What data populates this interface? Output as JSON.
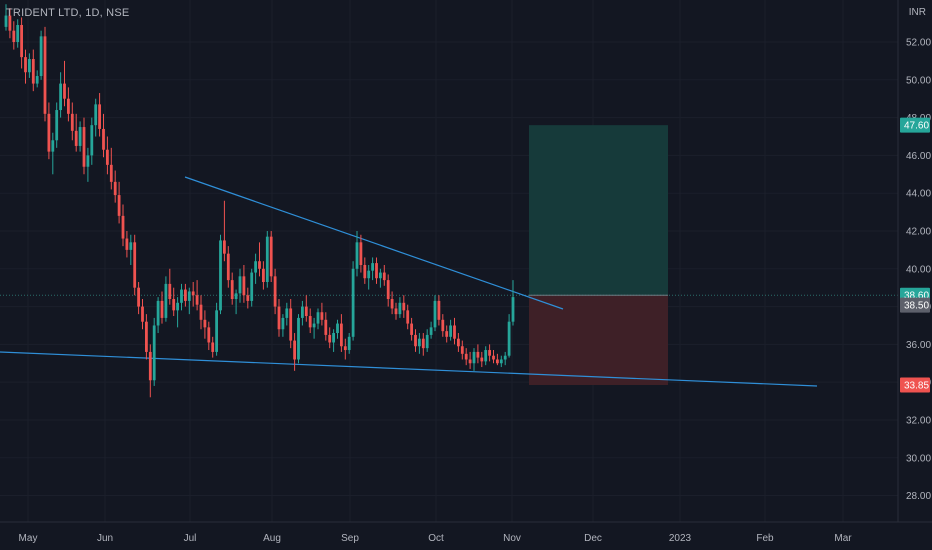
{
  "header": {
    "title": "TRIDENT LTD, 1D, NSE",
    "currency": "INR"
  },
  "colors": {
    "background": "#131722",
    "grid": "#1b1f2b",
    "up": "#26a69a",
    "down": "#ef5350",
    "trendline": "#2f8fd8",
    "target_zone": "#163a3a",
    "stop_zone": "#3e2027",
    "axis_text": "#b2b5be"
  },
  "chart_data": {
    "type": "candlestick",
    "y_axis": {
      "ticks": [
        28,
        30,
        32,
        34,
        36,
        38,
        40,
        42,
        44,
        46,
        48,
        50,
        52
      ],
      "ylim": [
        26.6,
        53.8
      ]
    },
    "x_axis": {
      "labels": [
        "May",
        "Jun",
        "Jul",
        "Aug",
        "Sep",
        "Oct",
        "Nov",
        "Dec",
        "2023",
        "Feb",
        "Mar"
      ]
    },
    "price_badges": [
      {
        "value": "47.60",
        "type": "target"
      },
      {
        "value": "38.60",
        "type": "entry"
      },
      {
        "value": "38.50",
        "type": "last"
      },
      {
        "value": "33.85",
        "type": "stop"
      }
    ],
    "position": {
      "entry": 38.6,
      "target": 47.6,
      "stop": 33.85
    },
    "candles": [
      [
        52.8,
        54.0,
        52.6,
        53.4
      ],
      [
        53.4,
        53.8,
        52.2,
        52.6
      ],
      [
        52.6,
        53.1,
        51.6,
        52.0
      ],
      [
        52.0,
        53.2,
        51.7,
        52.9
      ],
      [
        52.9,
        53.3,
        50.6,
        51.2
      ],
      [
        51.2,
        51.6,
        49.8,
        50.4
      ],
      [
        50.4,
        51.4,
        50.1,
        51.1
      ],
      [
        51.1,
        51.6,
        49.4,
        49.8
      ],
      [
        49.8,
        50.5,
        49.6,
        50.2
      ],
      [
        50.2,
        52.6,
        50.0,
        52.3
      ],
      [
        52.3,
        52.8,
        47.8,
        48.2
      ],
      [
        48.2,
        48.8,
        45.8,
        46.2
      ],
      [
        46.2,
        47.2,
        45.0,
        46.8
      ],
      [
        46.8,
        48.8,
        46.4,
        48.4
      ],
      [
        48.4,
        50.4,
        48.0,
        49.8
      ],
      [
        49.8,
        51.0,
        48.6,
        49.0
      ],
      [
        49.0,
        49.6,
        47.8,
        48.2
      ],
      [
        48.2,
        48.8,
        46.8,
        47.3
      ],
      [
        47.3,
        48.2,
        46.2,
        46.5
      ],
      [
        46.5,
        47.8,
        46.2,
        47.5
      ],
      [
        47.5,
        48.0,
        45.0,
        45.4
      ],
      [
        45.4,
        46.4,
        44.6,
        46.0
      ],
      [
        46.0,
        48.0,
        45.5,
        47.6
      ],
      [
        47.6,
        49.0,
        47.0,
        48.7
      ],
      [
        48.7,
        49.3,
        47.0,
        47.4
      ],
      [
        47.4,
        48.2,
        45.9,
        46.3
      ],
      [
        46.3,
        47.0,
        45.0,
        45.5
      ],
      [
        45.5,
        46.4,
        44.2,
        44.6
      ],
      [
        44.6,
        45.2,
        43.5,
        43.9
      ],
      [
        43.9,
        44.6,
        42.4,
        42.8
      ],
      [
        42.8,
        43.4,
        41.2,
        41.6
      ],
      [
        41.6,
        42.0,
        40.6,
        41.0
      ],
      [
        41.0,
        41.8,
        40.2,
        41.4
      ],
      [
        41.4,
        41.8,
        38.6,
        39.0
      ],
      [
        39.0,
        39.3,
        37.6,
        38.0
      ],
      [
        38.0,
        38.4,
        36.8,
        37.2
      ],
      [
        37.2,
        37.6,
        35.2,
        35.6
      ],
      [
        35.6,
        36.0,
        33.2,
        34.1
      ],
      [
        34.1,
        37.4,
        33.8,
        37.0
      ],
      [
        37.0,
        38.5,
        36.6,
        38.3
      ],
      [
        38.3,
        38.8,
        37.1,
        37.4
      ],
      [
        37.4,
        39.6,
        37.2,
        39.2
      ],
      [
        39.2,
        40.0,
        38.1,
        38.4
      ],
      [
        38.4,
        39.0,
        37.5,
        37.8
      ],
      [
        37.8,
        38.5,
        36.9,
        38.2
      ],
      [
        38.2,
        39.2,
        37.8,
        38.9
      ],
      [
        38.9,
        39.2,
        38.0,
        38.3
      ],
      [
        38.3,
        39.0,
        37.6,
        38.8
      ],
      [
        38.8,
        39.3,
        38.0,
        38.6
      ],
      [
        38.6,
        39.4,
        37.8,
        38.1
      ],
      [
        38.1,
        38.6,
        36.8,
        37.3
      ],
      [
        37.3,
        37.8,
        36.3,
        36.9
      ],
      [
        36.9,
        37.2,
        35.7,
        36.1
      ],
      [
        36.1,
        36.4,
        35.3,
        35.6
      ],
      [
        35.6,
        38.2,
        35.4,
        37.8
      ],
      [
        37.8,
        41.8,
        37.6,
        41.5
      ],
      [
        41.5,
        43.6,
        40.4,
        40.8
      ],
      [
        40.8,
        41.2,
        39.0,
        39.4
      ],
      [
        39.4,
        39.8,
        38.1,
        38.4
      ],
      [
        38.4,
        38.9,
        37.6,
        38.7
      ],
      [
        38.7,
        40.0,
        38.2,
        39.6
      ],
      [
        39.6,
        40.2,
        38.2,
        38.6
      ],
      [
        38.6,
        39.0,
        37.9,
        38.3
      ],
      [
        38.3,
        40.0,
        38.0,
        39.8
      ],
      [
        39.8,
        40.8,
        39.2,
        40.4
      ],
      [
        40.4,
        41.4,
        39.6,
        40.0
      ],
      [
        40.0,
        40.4,
        38.9,
        39.3
      ],
      [
        39.3,
        42.0,
        39.0,
        41.7
      ],
      [
        41.7,
        42.0,
        39.3,
        39.6
      ],
      [
        39.6,
        40.0,
        37.6,
        38.0
      ],
      [
        38.0,
        38.4,
        36.4,
        36.8
      ],
      [
        36.8,
        37.6,
        36.4,
        37.4
      ],
      [
        37.4,
        38.2,
        37.0,
        37.9
      ],
      [
        37.9,
        38.4,
        35.8,
        36.2
      ],
      [
        36.2,
        36.6,
        34.6,
        35.2
      ],
      [
        35.2,
        37.6,
        35.0,
        37.4
      ],
      [
        37.4,
        38.3,
        37.0,
        38.0
      ],
      [
        38.0,
        38.6,
        37.2,
        37.5
      ],
      [
        37.5,
        37.9,
        36.6,
        36.9
      ],
      [
        36.9,
        37.4,
        36.3,
        37.1
      ],
      [
        37.1,
        37.9,
        36.8,
        37.7
      ],
      [
        37.7,
        38.2,
        37.0,
        37.3
      ],
      [
        37.3,
        37.7,
        36.2,
        36.5
      ],
      [
        36.5,
        36.9,
        35.8,
        36.1
      ],
      [
        36.1,
        36.8,
        35.6,
        36.6
      ],
      [
        36.6,
        37.3,
        36.3,
        37.1
      ],
      [
        37.1,
        37.6,
        35.6,
        35.9
      ],
      [
        35.9,
        36.3,
        35.2,
        35.7
      ],
      [
        35.7,
        36.6,
        35.5,
        36.4
      ],
      [
        36.4,
        40.4,
        36.2,
        40.0
      ],
      [
        40.0,
        42.0,
        39.6,
        41.4
      ],
      [
        41.4,
        41.8,
        39.8,
        40.2
      ],
      [
        40.2,
        40.6,
        39.2,
        39.5
      ],
      [
        39.5,
        40.2,
        38.9,
        39.9
      ],
      [
        39.9,
        40.6,
        39.4,
        40.3
      ],
      [
        40.3,
        40.6,
        39.2,
        39.5
      ],
      [
        39.5,
        40.0,
        39.0,
        39.8
      ],
      [
        39.8,
        40.2,
        39.1,
        39.4
      ],
      [
        39.4,
        39.7,
        38.0,
        38.4
      ],
      [
        38.4,
        38.8,
        37.6,
        37.9
      ],
      [
        37.9,
        38.2,
        37.3,
        37.6
      ],
      [
        37.6,
        38.5,
        37.4,
        38.2
      ],
      [
        38.2,
        38.6,
        37.4,
        37.8
      ],
      [
        37.8,
        38.1,
        36.8,
        37.1
      ],
      [
        37.1,
        37.4,
        36.2,
        36.5
      ],
      [
        36.5,
        36.8,
        35.6,
        35.9
      ],
      [
        35.9,
        36.6,
        35.5,
        36.3
      ],
      [
        36.3,
        36.6,
        35.4,
        35.8
      ],
      [
        35.8,
        36.8,
        35.6,
        36.5
      ],
      [
        36.5,
        37.2,
        36.3,
        36.9
      ],
      [
        36.9,
        38.6,
        36.7,
        38.3
      ],
      [
        38.3,
        38.6,
        37.0,
        37.3
      ],
      [
        37.3,
        37.6,
        36.4,
        36.7
      ],
      [
        36.7,
        37.0,
        36.1,
        36.4
      ],
      [
        36.4,
        37.3,
        36.2,
        37.0
      ],
      [
        37.0,
        37.4,
        36.0,
        36.3
      ],
      [
        36.3,
        36.6,
        35.6,
        35.9
      ],
      [
        35.9,
        36.2,
        35.2,
        35.5
      ],
      [
        35.5,
        35.8,
        34.9,
        35.2
      ],
      [
        35.2,
        35.6,
        34.7,
        35.0
      ],
      [
        35.0,
        35.8,
        34.6,
        35.6
      ],
      [
        35.6,
        36.0,
        35.0,
        35.3
      ],
      [
        35.3,
        35.6,
        34.8,
        35.1
      ],
      [
        35.1,
        35.9,
        34.9,
        35.7
      ],
      [
        35.7,
        36.0,
        35.1,
        35.4
      ],
      [
        35.4,
        35.7,
        35.0,
        35.2
      ],
      [
        35.2,
        35.5,
        34.9,
        35.0
      ],
      [
        35.0,
        35.4,
        34.8,
        35.2
      ],
      [
        35.2,
        35.6,
        34.9,
        35.4
      ],
      [
        35.4,
        37.6,
        35.3,
        37.2
      ],
      [
        37.2,
        39.4,
        37.0,
        38.5
      ]
    ]
  }
}
